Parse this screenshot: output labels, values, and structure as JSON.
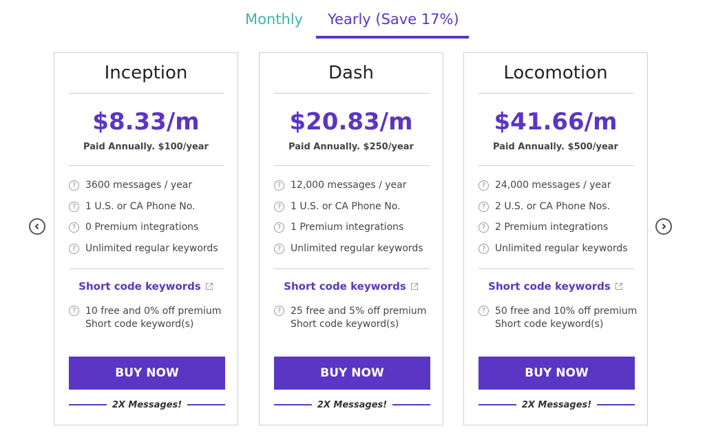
{
  "tabs": {
    "monthly": "Monthly",
    "yearly": "Yearly (Save 17%)"
  },
  "colors": {
    "accent": "#5b35c4",
    "monthly_tab": "#3bb5a8"
  },
  "icons": {
    "prev": "chevron-left-icon",
    "next": "chevron-right-icon",
    "help": "question-circle-icon",
    "external": "external-link-icon"
  },
  "plans": [
    {
      "name": "Inception",
      "price": "$8.33/m",
      "billing": "Paid Annually. $100/year",
      "features": [
        "3600 messages / year",
        "1 U.S. or CA Phone No.",
        "0 Premium integrations",
        "Unlimited regular keywords"
      ],
      "short_code_title": "Short code keywords",
      "short_code_desc": "10 free and 0% off premium Short code keyword(s)",
      "buy_label": "BUY NOW",
      "bonus": "2X Messages!"
    },
    {
      "name": "Dash",
      "price": "$20.83/m",
      "billing": "Paid Annually. $250/year",
      "features": [
        "12,000 messages / year",
        "1 U.S. or CA Phone No.",
        "1 Premium integrations",
        "Unlimited regular keywords"
      ],
      "short_code_title": "Short code keywords",
      "short_code_desc": "25 free and 5% off premium Short code keyword(s)",
      "buy_label": "BUY NOW",
      "bonus": "2X Messages!"
    },
    {
      "name": "Locomotion",
      "price": "$41.66/m",
      "billing": "Paid Annually. $500/year",
      "features": [
        "24,000 messages / year",
        "2 U.S. or CA Phone Nos.",
        "2 Premium integrations",
        "Unlimited regular keywords"
      ],
      "short_code_title": "Short code keywords",
      "short_code_desc": "50 free and 10% off premium Short code keyword(s)",
      "buy_label": "BUY NOW",
      "bonus": "2X Messages!"
    }
  ]
}
